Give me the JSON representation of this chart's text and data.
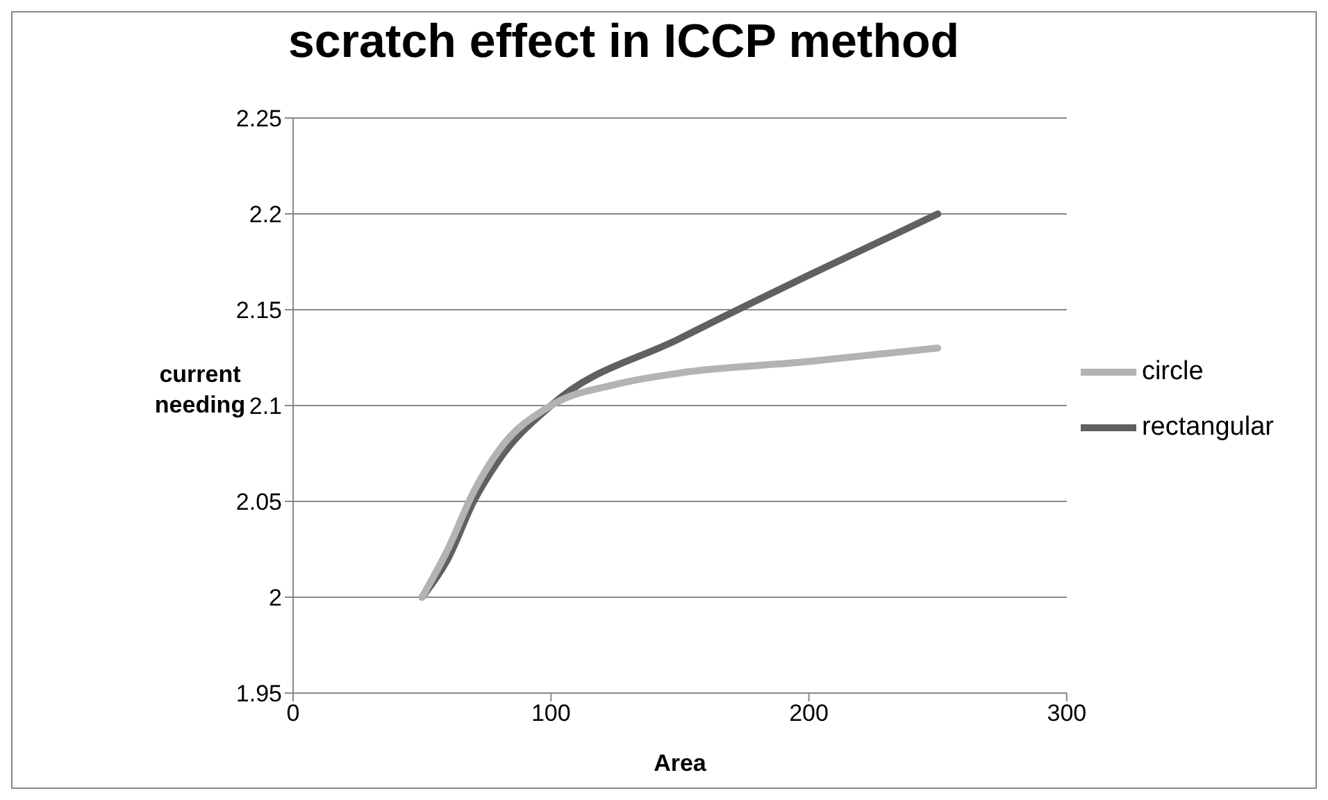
{
  "chart_data": {
    "type": "line",
    "title": "scratch effect in ICCP method",
    "xlabel": "Area",
    "ylabel": "current needing",
    "xlim": [
      0,
      300
    ],
    "xticks": [
      0,
      100,
      200,
      300
    ],
    "ylim": [
      1.95,
      2.25
    ],
    "yticks": [
      1.95,
      2,
      2.05,
      2.1,
      2.15,
      2.2,
      2.25
    ],
    "grid": "y",
    "legend": "right",
    "marker": "none",
    "line_style": "solid",
    "series": [
      {
        "name": "rectangular",
        "color": "#606060",
        "x": [
          50,
          60,
          70,
          80,
          100,
          150,
          200,
          250
        ],
        "values": [
          2,
          2.02,
          2.05,
          2.072,
          2.1,
          2.135,
          2.168,
          2.2
        ]
      },
      {
        "name": "circle",
        "color": "#b3b3b3",
        "x": [
          50,
          60,
          70,
          80,
          100,
          125,
          150,
          200,
          250
        ],
        "values": [
          2,
          2.025,
          2.055,
          2.077,
          2.1,
          2.111,
          2.117,
          2.123,
          2.13
        ]
      }
    ]
  }
}
